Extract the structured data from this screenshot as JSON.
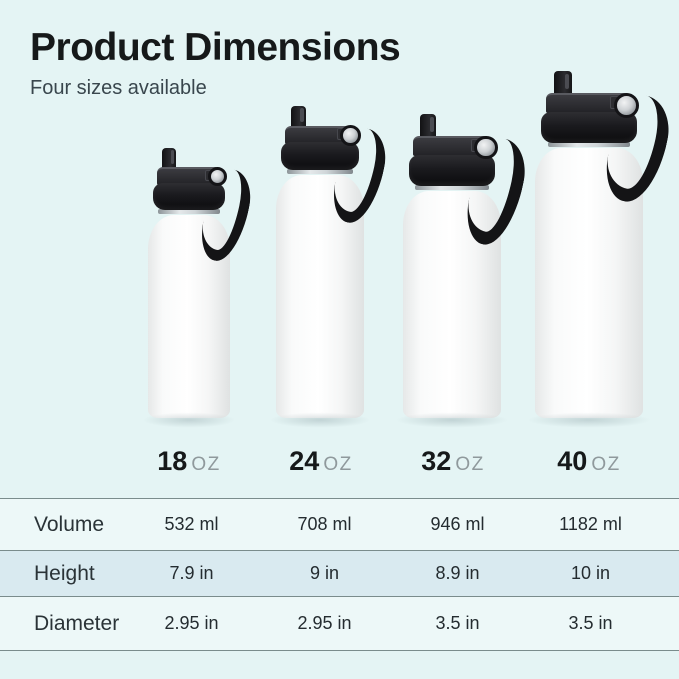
{
  "header": {
    "title": "Product Dimensions",
    "subtitle": "Four sizes available"
  },
  "sizes": [
    {
      "number": "18",
      "unit": "OZ"
    },
    {
      "number": "24",
      "unit": "OZ"
    },
    {
      "number": "32",
      "unit": "OZ"
    },
    {
      "number": "40",
      "unit": "OZ"
    }
  ],
  "table": {
    "rows": [
      {
        "label": "Volume",
        "values": [
          "532 ml",
          "708 ml",
          "946 ml",
          "1182 ml"
        ]
      },
      {
        "label": "Height",
        "values": [
          "7.9 in",
          "9 in",
          "8.9 in",
          "10 in"
        ]
      },
      {
        "label": "Diameter",
        "values": [
          "2.95 in",
          "2.95 in",
          "3.5 in",
          "3.5 in"
        ]
      }
    ]
  },
  "colors": {
    "page_bg": "#e4f4f4",
    "row_bg": "#edf8f8",
    "row_alt_bg": "#d9eaf0",
    "divider": "#7a8c8c",
    "title": "#16191a",
    "subtitle": "#39464d",
    "oz_unit": "#8f999c",
    "table_text": "#242c30",
    "lid_black": "#1a1a1c"
  }
}
